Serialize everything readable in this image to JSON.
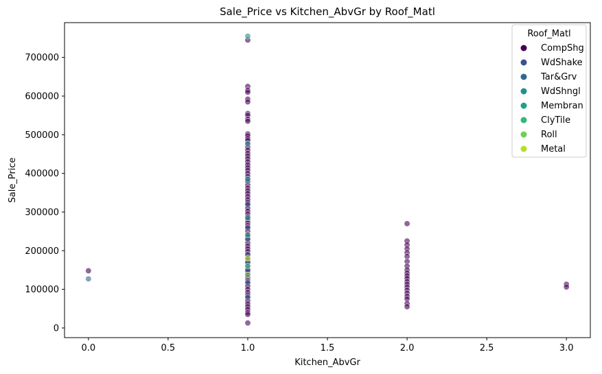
{
  "chart_data": {
    "type": "scatter",
    "title": "Sale_Price vs Kitchen_AbvGr by Roof_Matl",
    "xlabel": "Kitchen_AbvGr",
    "ylabel": "Sale_Price",
    "xlim": [
      -0.15,
      3.15
    ],
    "ylim": [
      -25000,
      790000
    ],
    "xticks": [
      0.0,
      0.5,
      1.0,
      1.5,
      2.0,
      2.5,
      3.0
    ],
    "xtick_labels": [
      "0.0",
      "0.5",
      "1.0",
      "1.5",
      "2.0",
      "2.5",
      "3.0"
    ],
    "yticks": [
      0,
      100000,
      200000,
      300000,
      400000,
      500000,
      600000,
      700000
    ],
    "ytick_labels": [
      "0",
      "100000",
      "200000",
      "300000",
      "400000",
      "500000",
      "600000",
      "700000"
    ],
    "grid": false,
    "legend": {
      "title": "Roof_Matl",
      "placement": "top-right"
    },
    "series": [
      {
        "name": "CompShg",
        "color": "#440154",
        "points": [
          [
            0,
            148000
          ],
          [
            1,
            745000
          ],
          [
            1,
            625000
          ],
          [
            1,
            615000
          ],
          [
            1,
            610000
          ],
          [
            1,
            592000
          ],
          [
            1,
            585000
          ],
          [
            1,
            555000
          ],
          [
            1,
            550000
          ],
          [
            1,
            540000
          ],
          [
            1,
            535000
          ],
          [
            1,
            502000
          ],
          [
            1,
            497000
          ],
          [
            1,
            490000
          ],
          [
            1,
            485000
          ],
          [
            1,
            475000
          ],
          [
            1,
            468000
          ],
          [
            1,
            460000
          ],
          [
            1,
            452000
          ],
          [
            1,
            445000
          ],
          [
            1,
            438000
          ],
          [
            1,
            430000
          ],
          [
            1,
            422000
          ],
          [
            1,
            415000
          ],
          [
            1,
            408000
          ],
          [
            1,
            400000
          ],
          [
            1,
            392000
          ],
          [
            1,
            385000
          ],
          [
            1,
            378000
          ],
          [
            1,
            370000
          ],
          [
            1,
            362000
          ],
          [
            1,
            355000
          ],
          [
            1,
            348000
          ],
          [
            1,
            340000
          ],
          [
            1,
            332000
          ],
          [
            1,
            325000
          ],
          [
            1,
            318000
          ],
          [
            1,
            310000
          ],
          [
            1,
            302000
          ],
          [
            1,
            295000
          ],
          [
            1,
            288000
          ],
          [
            1,
            280000
          ],
          [
            1,
            272000
          ],
          [
            1,
            265000
          ],
          [
            1,
            258000
          ],
          [
            1,
            250000
          ],
          [
            1,
            242000
          ],
          [
            1,
            235000
          ],
          [
            1,
            228000
          ],
          [
            1,
            220000
          ],
          [
            1,
            212000
          ],
          [
            1,
            205000
          ],
          [
            1,
            198000
          ],
          [
            1,
            190000
          ],
          [
            1,
            182000
          ],
          [
            1,
            175000
          ],
          [
            1,
            168000
          ],
          [
            1,
            160000
          ],
          [
            1,
            152000
          ],
          [
            1,
            145000
          ],
          [
            1,
            138000
          ],
          [
            1,
            130000
          ],
          [
            1,
            122000
          ],
          [
            1,
            115000
          ],
          [
            1,
            108000
          ],
          [
            1,
            100000
          ],
          [
            1,
            92000
          ],
          [
            1,
            85000
          ],
          [
            1,
            78000
          ],
          [
            1,
            70000
          ],
          [
            1,
            62000
          ],
          [
            1,
            55000
          ],
          [
            1,
            48000
          ],
          [
            1,
            40000
          ],
          [
            1,
            35000
          ],
          [
            1,
            13000
          ],
          [
            2,
            270000
          ],
          [
            2,
            225000
          ],
          [
            2,
            215000
          ],
          [
            2,
            205000
          ],
          [
            2,
            195000
          ],
          [
            2,
            185000
          ],
          [
            2,
            172000
          ],
          [
            2,
            160000
          ],
          [
            2,
            150000
          ],
          [
            2,
            142000
          ],
          [
            2,
            135000
          ],
          [
            2,
            128000
          ],
          [
            2,
            120000
          ],
          [
            2,
            113000
          ],
          [
            2,
            106000
          ],
          [
            2,
            98000
          ],
          [
            2,
            90000
          ],
          [
            2,
            82000
          ],
          [
            2,
            75000
          ],
          [
            2,
            63000
          ],
          [
            2,
            55000
          ],
          [
            3,
            113000
          ],
          [
            3,
            106000
          ]
        ]
      },
      {
        "name": "WdShake",
        "color": "#3b528b",
        "points": [
          [
            1,
            320000
          ],
          [
            1,
            260000
          ],
          [
            1,
            190000
          ],
          [
            1,
            150000
          ]
        ]
      },
      {
        "name": "Tar&Grv",
        "color": "#31688e",
        "points": [
          [
            0,
            127000
          ],
          [
            1,
            380000
          ],
          [
            1,
            230000
          ],
          [
            1,
            170000
          ],
          [
            1,
            118000
          ],
          [
            1,
            80000
          ]
        ]
      },
      {
        "name": "WdShngl",
        "color": "#21918c",
        "points": [
          [
            1,
            755000
          ],
          [
            1,
            477000
          ],
          [
            1,
            385000
          ],
          [
            1,
            285000
          ]
        ]
      },
      {
        "name": "Membran",
        "color": "#1fa187",
        "points": [
          [
            1,
            240000
          ]
        ]
      },
      {
        "name": "ClyTile",
        "color": "#35b779",
        "points": [
          [
            1,
            160000
          ]
        ]
      },
      {
        "name": "Roll",
        "color": "#6ece58",
        "points": [
          [
            1,
            137000
          ]
        ]
      },
      {
        "name": "Metal",
        "color": "#b5de2b",
        "points": [
          [
            1,
            180000
          ]
        ]
      }
    ]
  }
}
